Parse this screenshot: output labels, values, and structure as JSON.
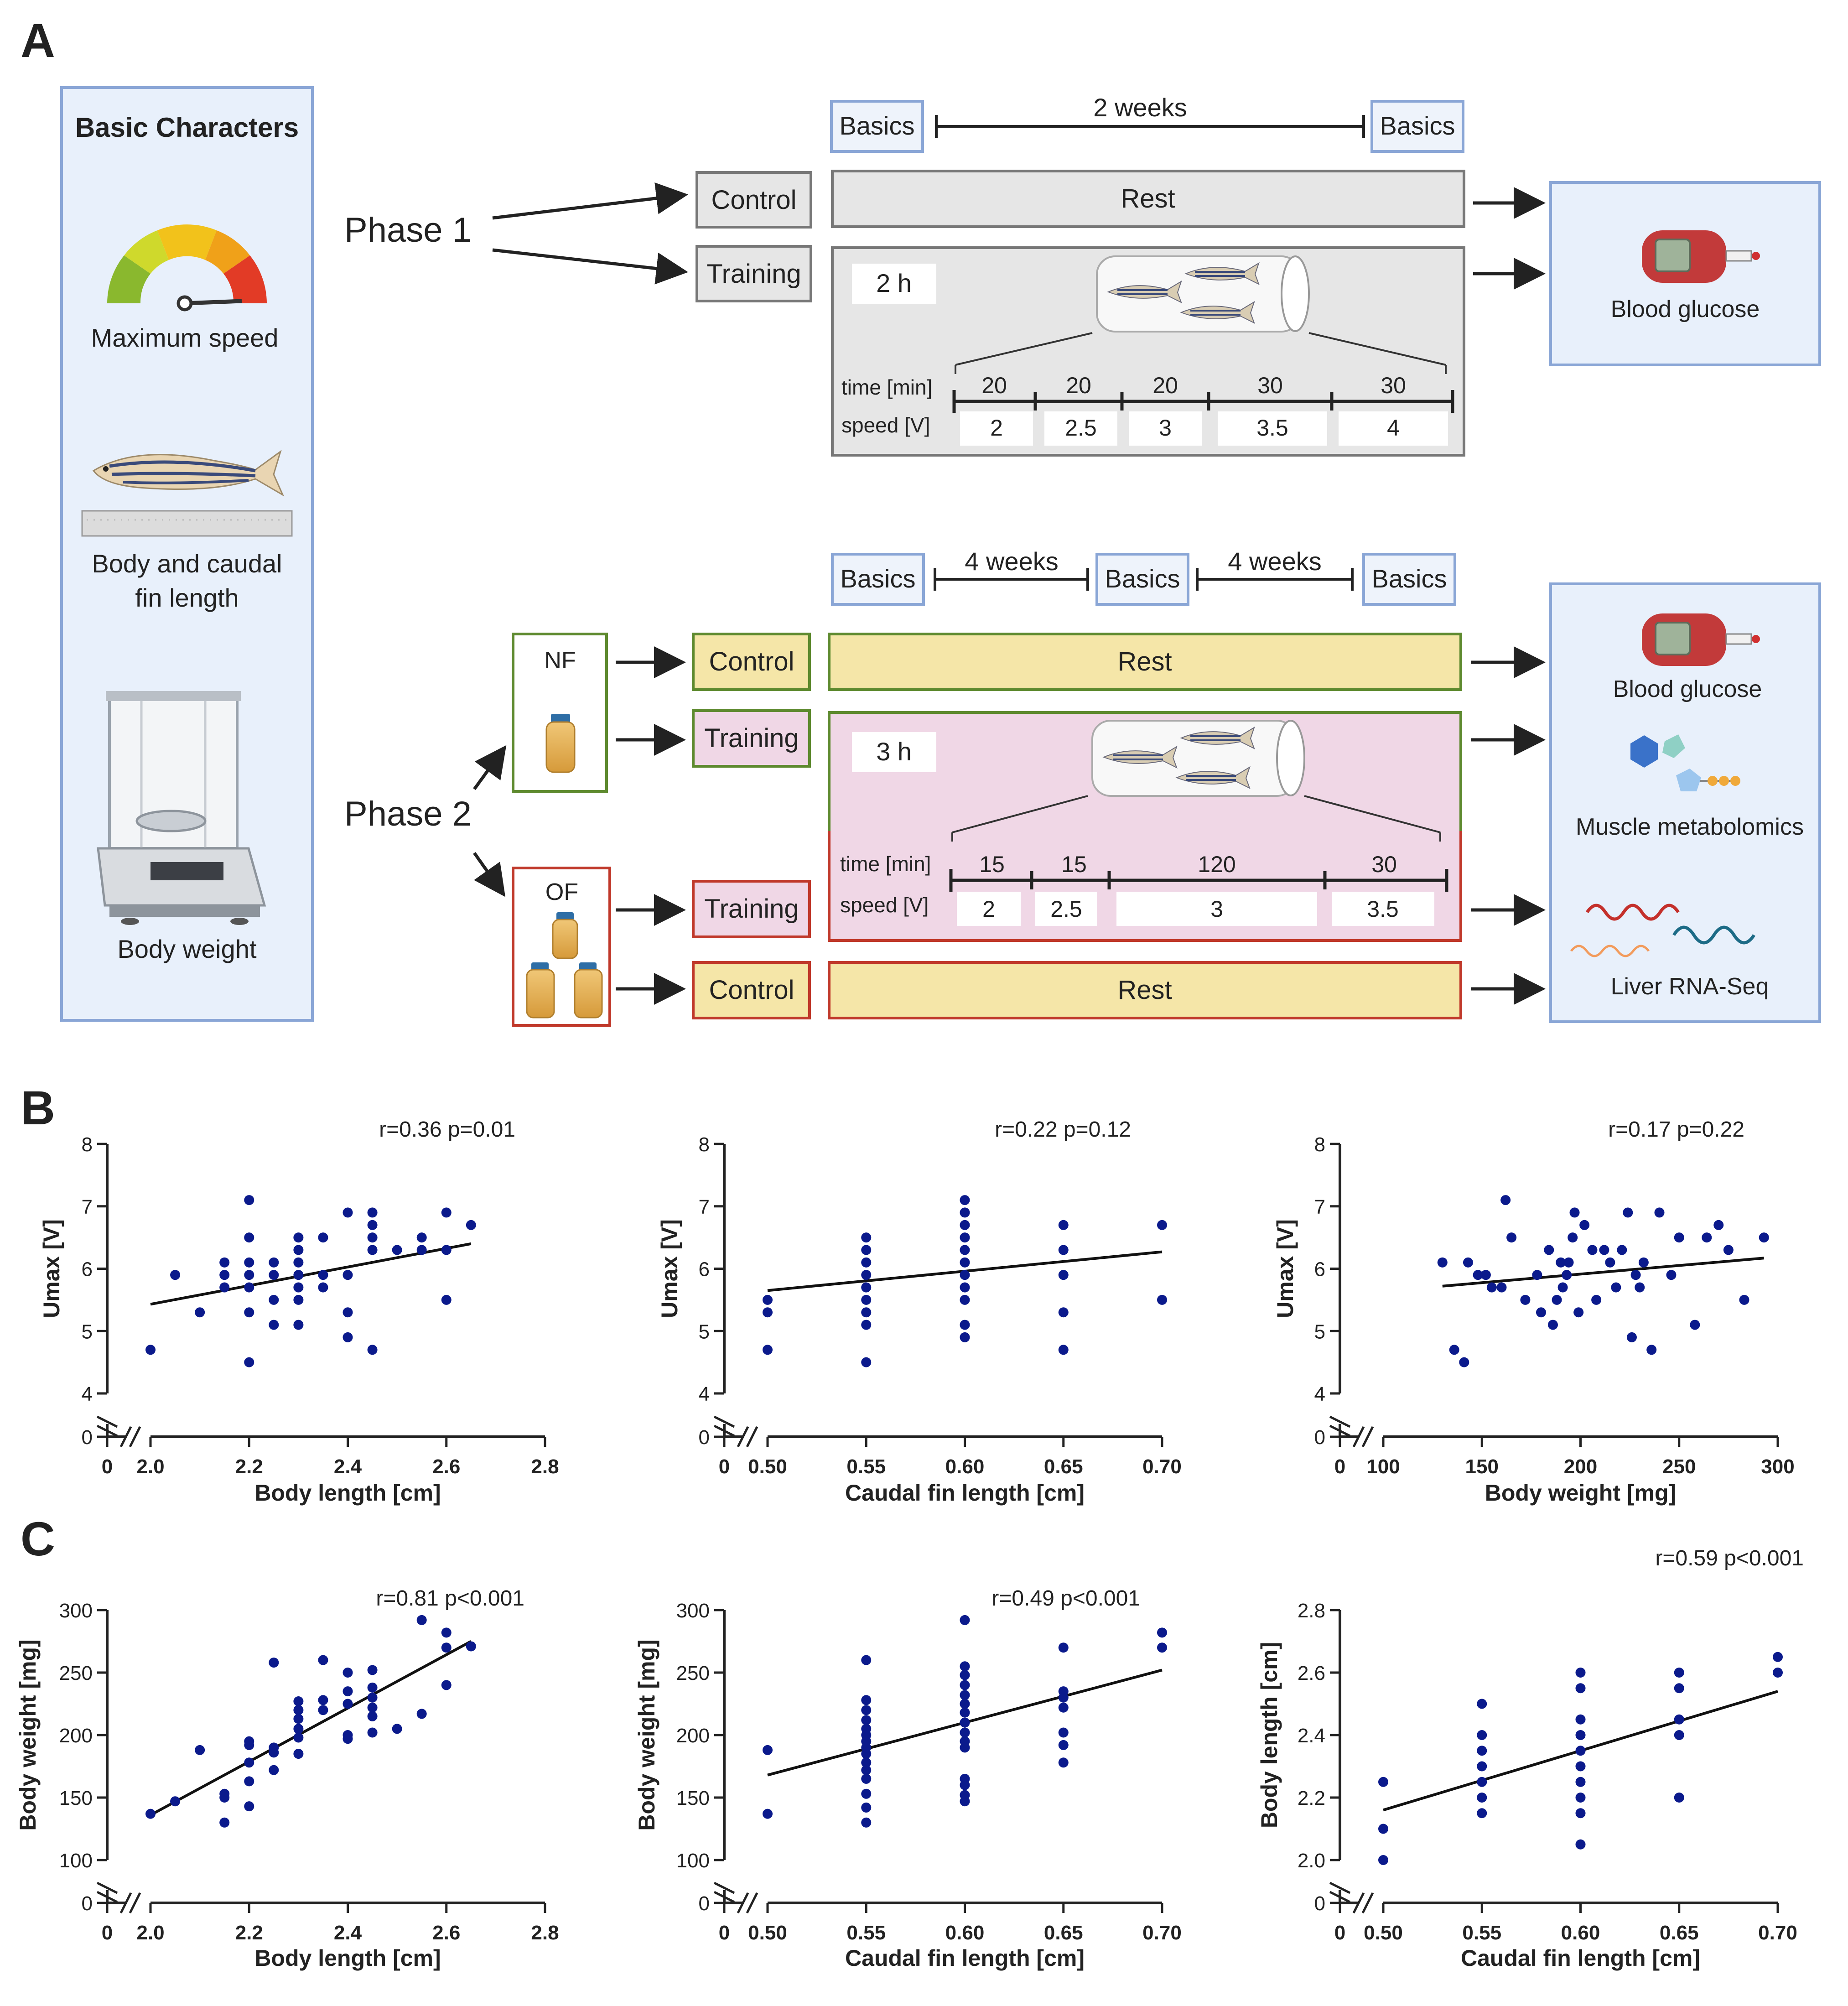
{
  "panel_labels": {
    "a": "A",
    "b": "B",
    "c": "C"
  },
  "left_panel": {
    "title": "Basic Characters",
    "items": [
      "Maximum speed",
      "Body and caudal fin length",
      "Body weight"
    ],
    "body_length_line1": "Body and caudal",
    "body_length_line2": "fin length"
  },
  "phase1": {
    "label": "Phase 1",
    "basics": "Basics",
    "duration": "2 weeks",
    "control": "Control",
    "training": "Training",
    "rest": "Rest",
    "session": "2 h",
    "time_label": "time [min]",
    "speed_label": "speed [V]",
    "times": [
      "20",
      "20",
      "20",
      "30",
      "30"
    ],
    "speeds": [
      "2",
      "2.5",
      "3",
      "3.5",
      "4"
    ],
    "outcome": "Blood glucose"
  },
  "phase2": {
    "label": "Phase 2",
    "basics": "Basics",
    "duration1": "4 weeks",
    "duration2": "4 weeks",
    "nf": "NF",
    "of": "OF",
    "control": "Control",
    "training": "Training",
    "rest": "Rest",
    "session": "3 h",
    "time_label": "time [min]",
    "speed_label": "speed [V]",
    "times": [
      "15",
      "15",
      "120",
      "30"
    ],
    "speeds": [
      "2",
      "2.5",
      "3",
      "3.5"
    ],
    "outcomes": [
      "Blood glucose",
      "Muscle metabolomics",
      "Liver RNA-Seq"
    ]
  },
  "colors": {
    "point": "#0b1a8c",
    "blue_box": "#e8f0fb",
    "blue_border": "#8aa6d6",
    "gray_box": "#e6e6e6",
    "yellow_box": "#f5e6a8",
    "pink_box": "#f0d7e6",
    "green_border": "#5e8a2f",
    "red_border": "#c0392b"
  },
  "chart_data": [
    {
      "id": "B1",
      "type": "scatter",
      "annotation": "r=0.36 p=0.01",
      "xlabel": "Body length [cm]",
      "ylabel": "Umax [V]",
      "xlim": [
        2.0,
        2.8
      ],
      "xticks": [
        "2.0",
        "2.2",
        "2.4",
        "2.6",
        "2.8"
      ],
      "xzero": "0",
      "ylim": [
        4,
        8
      ],
      "yticks": [
        "4",
        "5",
        "6",
        "7",
        "8"
      ],
      "yzero": "0",
      "fit": [
        [
          2.0,
          5.43
        ],
        [
          2.65,
          6.4
        ]
      ],
      "points": [
        [
          2.0,
          4.7
        ],
        [
          2.05,
          5.9
        ],
        [
          2.1,
          5.3
        ],
        [
          2.15,
          5.7
        ],
        [
          2.15,
          5.9
        ],
        [
          2.15,
          6.1
        ],
        [
          2.2,
          4.5
        ],
        [
          2.2,
          5.3
        ],
        [
          2.2,
          5.7
        ],
        [
          2.2,
          5.9
        ],
        [
          2.2,
          6.1
        ],
        [
          2.2,
          6.5
        ],
        [
          2.2,
          7.1
        ],
        [
          2.25,
          5.1
        ],
        [
          2.25,
          5.5
        ],
        [
          2.25,
          5.9
        ],
        [
          2.25,
          6.1
        ],
        [
          2.3,
          5.1
        ],
        [
          2.3,
          5.5
        ],
        [
          2.3,
          5.7
        ],
        [
          2.3,
          5.9
        ],
        [
          2.3,
          6.1
        ],
        [
          2.3,
          6.3
        ],
        [
          2.3,
          6.5
        ],
        [
          2.35,
          5.7
        ],
        [
          2.35,
          5.9
        ],
        [
          2.35,
          6.5
        ],
        [
          2.4,
          4.9
        ],
        [
          2.4,
          5.3
        ],
        [
          2.4,
          5.9
        ],
        [
          2.4,
          6.9
        ],
        [
          2.45,
          4.7
        ],
        [
          2.45,
          6.3
        ],
        [
          2.45,
          6.5
        ],
        [
          2.45,
          6.7
        ],
        [
          2.45,
          6.9
        ],
        [
          2.5,
          6.3
        ],
        [
          2.55,
          6.3
        ],
        [
          2.55,
          6.5
        ],
        [
          2.6,
          5.5
        ],
        [
          2.6,
          6.3
        ],
        [
          2.6,
          6.9
        ],
        [
          2.65,
          6.7
        ]
      ]
    },
    {
      "id": "B2",
      "type": "scatter",
      "annotation": "r=0.22 p=0.12",
      "xlabel": "Caudal fin length [cm]",
      "ylabel": "Umax [V]",
      "xlim": [
        0.5,
        0.7
      ],
      "xticks": [
        "0.50",
        "0.55",
        "0.60",
        "0.65",
        "0.70"
      ],
      "xzero": "0",
      "ylim": [
        4,
        8
      ],
      "yticks": [
        "4",
        "5",
        "6",
        "7",
        "8"
      ],
      "yzero": "0",
      "fit": [
        [
          0.5,
          5.65
        ],
        [
          0.7,
          6.27
        ]
      ],
      "points": [
        [
          0.5,
          4.7
        ],
        [
          0.5,
          5.3
        ],
        [
          0.5,
          5.5
        ],
        [
          0.55,
          4.5
        ],
        [
          0.55,
          5.1
        ],
        [
          0.55,
          5.3
        ],
        [
          0.55,
          5.5
        ],
        [
          0.55,
          5.7
        ],
        [
          0.55,
          5.9
        ],
        [
          0.55,
          6.1
        ],
        [
          0.55,
          6.3
        ],
        [
          0.55,
          6.5
        ],
        [
          0.6,
          4.9
        ],
        [
          0.6,
          5.1
        ],
        [
          0.6,
          5.5
        ],
        [
          0.6,
          5.7
        ],
        [
          0.6,
          5.9
        ],
        [
          0.6,
          6.1
        ],
        [
          0.6,
          6.3
        ],
        [
          0.6,
          6.5
        ],
        [
          0.6,
          6.7
        ],
        [
          0.6,
          6.9
        ],
        [
          0.6,
          7.1
        ],
        [
          0.65,
          4.7
        ],
        [
          0.65,
          5.3
        ],
        [
          0.65,
          5.9
        ],
        [
          0.65,
          6.3
        ],
        [
          0.65,
          6.7
        ],
        [
          0.7,
          5.5
        ],
        [
          0.7,
          6.7
        ]
      ]
    },
    {
      "id": "B3",
      "type": "scatter",
      "annotation": "r=0.17 p=0.22",
      "xlabel": "Body weight [mg]",
      "ylabel": "Umax [V]",
      "xlim": [
        100,
        300
      ],
      "xticks": [
        "100",
        "150",
        "200",
        "250",
        "300"
      ],
      "xzero": "0",
      "ylim": [
        4,
        8
      ],
      "yticks": [
        "4",
        "5",
        "6",
        "7",
        "8"
      ],
      "yzero": "0",
      "fit": [
        [
          130,
          5.72
        ],
        [
          293,
          6.17
        ]
      ],
      "points": [
        [
          130,
          6.1
        ],
        [
          136,
          4.7
        ],
        [
          141,
          4.5
        ],
        [
          143,
          6.1
        ],
        [
          148,
          5.9
        ],
        [
          152,
          5.9
        ],
        [
          155,
          5.7
        ],
        [
          160,
          5.7
        ],
        [
          162,
          7.1
        ],
        [
          165,
          6.5
        ],
        [
          172,
          5.5
        ],
        [
          178,
          5.9
        ],
        [
          180,
          5.3
        ],
        [
          184,
          6.3
        ],
        [
          186,
          5.1
        ],
        [
          188,
          5.5
        ],
        [
          190,
          6.1
        ],
        [
          191,
          5.7
        ],
        [
          193,
          5.9
        ],
        [
          194,
          6.1
        ],
        [
          196,
          6.5
        ],
        [
          197,
          6.9
        ],
        [
          199,
          5.3
        ],
        [
          202,
          6.7
        ],
        [
          206,
          6.3
        ],
        [
          208,
          5.5
        ],
        [
          212,
          6.3
        ],
        [
          215,
          6.1
        ],
        [
          218,
          5.7
        ],
        [
          221,
          6.3
        ],
        [
          224,
          6.9
        ],
        [
          226,
          4.9
        ],
        [
          228,
          5.9
        ],
        [
          230,
          5.7
        ],
        [
          232,
          6.1
        ],
        [
          236,
          4.7
        ],
        [
          240,
          6.9
        ],
        [
          246,
          5.9
        ],
        [
          250,
          6.5
        ],
        [
          258,
          5.1
        ],
        [
          264,
          6.5
        ],
        [
          270,
          6.7
        ],
        [
          275,
          6.3
        ],
        [
          283,
          5.5
        ],
        [
          293,
          6.5
        ]
      ]
    },
    {
      "id": "C1",
      "type": "scatter",
      "annotation": "r=0.81 p<0.001",
      "xlabel": "Body length [cm]",
      "ylabel": "Body weight [mg]",
      "xlim": [
        2.0,
        2.8
      ],
      "xticks": [
        "2.0",
        "2.2",
        "2.4",
        "2.6",
        "2.8"
      ],
      "xzero": "0",
      "ylim": [
        100,
        300
      ],
      "yticks": [
        "100",
        "150",
        "200",
        "250",
        "300"
      ],
      "yzero": "0",
      "fit": [
        [
          2.0,
          136
        ],
        [
          2.65,
          275
        ]
      ],
      "points": [
        [
          2.0,
          137
        ],
        [
          2.05,
          147
        ],
        [
          2.1,
          188
        ],
        [
          2.15,
          130
        ],
        [
          2.15,
          150
        ],
        [
          2.15,
          153
        ],
        [
          2.2,
          143
        ],
        [
          2.2,
          163
        ],
        [
          2.2,
          178
        ],
        [
          2.2,
          192
        ],
        [
          2.2,
          195
        ],
        [
          2.25,
          172
        ],
        [
          2.25,
          186
        ],
        [
          2.25,
          190
        ],
        [
          2.25,
          258
        ],
        [
          2.3,
          185
        ],
        [
          2.3,
          198
        ],
        [
          2.3,
          205
        ],
        [
          2.3,
          213
        ],
        [
          2.3,
          220
        ],
        [
          2.3,
          227
        ],
        [
          2.35,
          220
        ],
        [
          2.35,
          228
        ],
        [
          2.35,
          260
        ],
        [
          2.4,
          197
        ],
        [
          2.4,
          200
        ],
        [
          2.4,
          225
        ],
        [
          2.4,
          235
        ],
        [
          2.4,
          250
        ],
        [
          2.45,
          202
        ],
        [
          2.45,
          215
        ],
        [
          2.45,
          222
        ],
        [
          2.45,
          230
        ],
        [
          2.45,
          238
        ],
        [
          2.45,
          252
        ],
        [
          2.5,
          205
        ],
        [
          2.55,
          217
        ],
        [
          2.55,
          292
        ],
        [
          2.6,
          240
        ],
        [
          2.6,
          270
        ],
        [
          2.6,
          282
        ],
        [
          2.65,
          271
        ]
      ]
    },
    {
      "id": "C2",
      "type": "scatter",
      "annotation": "r=0.49 p<0.001",
      "xlabel": "Caudal fin length [cm]",
      "ylabel": "Body weight [mg]",
      "xlim": [
        0.5,
        0.7
      ],
      "xticks": [
        "0.50",
        "0.55",
        "0.60",
        "0.65",
        "0.70"
      ],
      "xzero": "0",
      "ylim": [
        100,
        300
      ],
      "yticks": [
        "100",
        "150",
        "200",
        "250",
        "300"
      ],
      "yzero": "0",
      "fit": [
        [
          0.5,
          168
        ],
        [
          0.7,
          252
        ]
      ],
      "points": [
        [
          0.5,
          137
        ],
        [
          0.5,
          188
        ],
        [
          0.55,
          130
        ],
        [
          0.55,
          142
        ],
        [
          0.55,
          153
        ],
        [
          0.55,
          165
        ],
        [
          0.55,
          172
        ],
        [
          0.55,
          178
        ],
        [
          0.55,
          185
        ],
        [
          0.55,
          190
        ],
        [
          0.55,
          195
        ],
        [
          0.55,
          200
        ],
        [
          0.55,
          205
        ],
        [
          0.55,
          212
        ],
        [
          0.55,
          220
        ],
        [
          0.55,
          228
        ],
        [
          0.55,
          260
        ],
        [
          0.6,
          147
        ],
        [
          0.6,
          152
        ],
        [
          0.6,
          160
        ],
        [
          0.6,
          165
        ],
        [
          0.6,
          190
        ],
        [
          0.6,
          195
        ],
        [
          0.6,
          202
        ],
        [
          0.6,
          210
        ],
        [
          0.6,
          218
        ],
        [
          0.6,
          225
        ],
        [
          0.6,
          232
        ],
        [
          0.6,
          240
        ],
        [
          0.6,
          248
        ],
        [
          0.6,
          255
        ],
        [
          0.6,
          292
        ],
        [
          0.65,
          178
        ],
        [
          0.65,
          192
        ],
        [
          0.65,
          202
        ],
        [
          0.65,
          222
        ],
        [
          0.65,
          230
        ],
        [
          0.65,
          235
        ],
        [
          0.65,
          270
        ],
        [
          0.7,
          270
        ],
        [
          0.7,
          282
        ]
      ]
    },
    {
      "id": "C3",
      "type": "scatter",
      "annotation": "r=0.59 p<0.001",
      "xlabel": "Caudal fin length [cm]",
      "ylabel": "Body length [cm]",
      "xlim": [
        0.5,
        0.7
      ],
      "xticks": [
        "0.50",
        "0.55",
        "0.60",
        "0.65",
        "0.70"
      ],
      "xzero": "0",
      "ylim": [
        2.0,
        2.8
      ],
      "yticks": [
        "2.0",
        "2.2",
        "2.4",
        "2.6",
        "2.8"
      ],
      "yzero": "0",
      "fit": [
        [
          0.5,
          2.16
        ],
        [
          0.7,
          2.54
        ]
      ],
      "points": [
        [
          0.5,
          2.0
        ],
        [
          0.5,
          2.1
        ],
        [
          0.5,
          2.25
        ],
        [
          0.55,
          2.15
        ],
        [
          0.55,
          2.2
        ],
        [
          0.55,
          2.25
        ],
        [
          0.55,
          2.3
        ],
        [
          0.55,
          2.35
        ],
        [
          0.55,
          2.4
        ],
        [
          0.55,
          2.5
        ],
        [
          0.6,
          2.05
        ],
        [
          0.6,
          2.15
        ],
        [
          0.6,
          2.2
        ],
        [
          0.6,
          2.25
        ],
        [
          0.6,
          2.3
        ],
        [
          0.6,
          2.35
        ],
        [
          0.6,
          2.4
        ],
        [
          0.6,
          2.45
        ],
        [
          0.6,
          2.55
        ],
        [
          0.6,
          2.6
        ],
        [
          0.65,
          2.2
        ],
        [
          0.65,
          2.4
        ],
        [
          0.65,
          2.45
        ],
        [
          0.65,
          2.55
        ],
        [
          0.65,
          2.6
        ],
        [
          0.7,
          2.6
        ],
        [
          0.7,
          2.65
        ]
      ]
    }
  ]
}
